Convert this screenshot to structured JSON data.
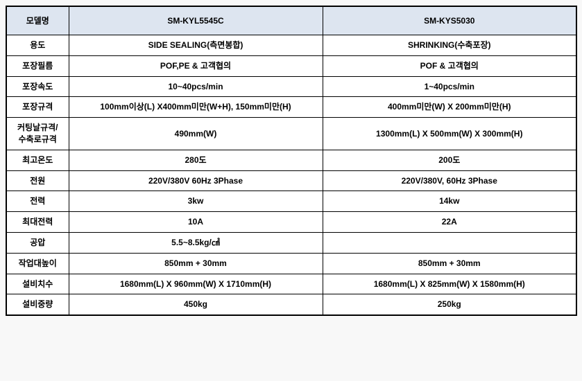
{
  "table": {
    "header_bg": "#dde5f0",
    "columns": [
      {
        "label": "모델명"
      },
      {
        "label": "SM-KYL5545C"
      },
      {
        "label": "SM-KYS5030"
      }
    ],
    "rows": [
      {
        "label": "용도",
        "c1": "SIDE SEALING(측면봉합)",
        "c2": "SHRINKING(수축포장)"
      },
      {
        "label": "포장필름",
        "c1": "POF,PE & 고객협의",
        "c2": "POF & 고객협의"
      },
      {
        "label": "포장속도",
        "c1": "10~40pcs/min",
        "c2": "1~40pcs/min"
      },
      {
        "label": "포장규격",
        "c1": "100mm이상(L) X400mm미만(W+H), 150mm미만(H)",
        "c2": "400mm미만(W) X 200mm미만(H)"
      },
      {
        "label": "커팅날규격/\n수축로규격",
        "c1": "490mm(W)",
        "c2": "1300mm(L) X 500mm(W) X 300mm(H)"
      },
      {
        "label": "최고온도",
        "c1": "280도",
        "c2": "200도"
      },
      {
        "label": "전원",
        "c1": "220V/380V 60Hz 3Phase",
        "c2": "220V/380V, 60Hz 3Phase"
      },
      {
        "label": "전력",
        "c1": "3kw",
        "c2": "14kw"
      },
      {
        "label": "최대전력",
        "c1": "10A",
        "c2": "22A"
      },
      {
        "label": "공압",
        "c1": "5.5~8.5kg/㎠",
        "c2": ""
      },
      {
        "label": "작업대높이",
        "c1": "850mm + 30mm",
        "c2": "850mm + 30mm"
      },
      {
        "label": "설비치수",
        "c1": "1680mm(L) X 960mm(W) X 1710mm(H)",
        "c2": "1680mm(L) X 825mm(W) X 1580mm(H)"
      },
      {
        "label": "설비중량",
        "c1": "450kg",
        "c2": "250kg"
      }
    ]
  }
}
